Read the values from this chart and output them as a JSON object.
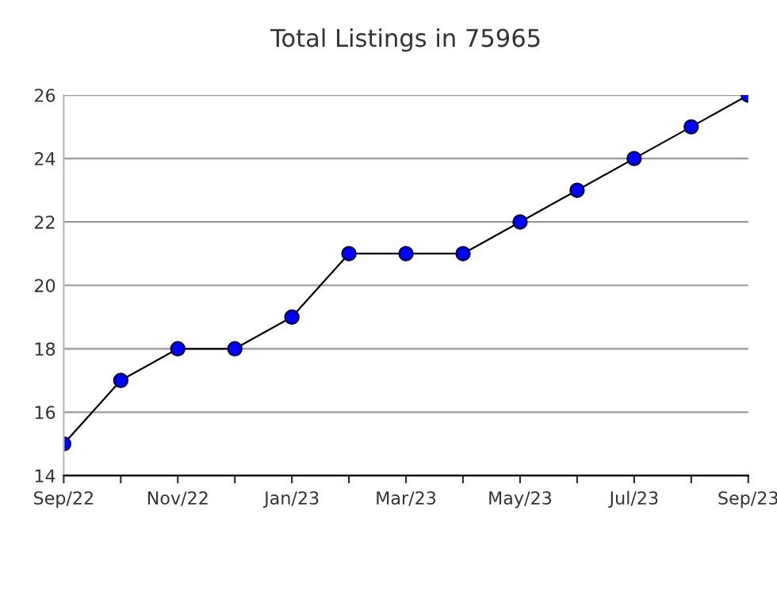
{
  "chart_data": {
    "type": "line",
    "title": "Total Listings in 75965",
    "categories": [
      "Sep/22",
      null,
      "Nov/22",
      null,
      "Jan/23",
      null,
      "Mar/23",
      null,
      "May/23",
      null,
      "Jul/23",
      null,
      "Sep/23"
    ],
    "series": [
      {
        "color": "#0000ff",
        "values": [
          15,
          17,
          18,
          18,
          19,
          21,
          21,
          21,
          22,
          23,
          24,
          25,
          26
        ]
      }
    ],
    "ylim": [
      14,
      26
    ],
    "yticks": [
      14,
      16,
      18,
      20,
      22,
      24,
      26
    ],
    "grid": "y",
    "marker": "circle",
    "line_style": "solid",
    "legend": false
  }
}
